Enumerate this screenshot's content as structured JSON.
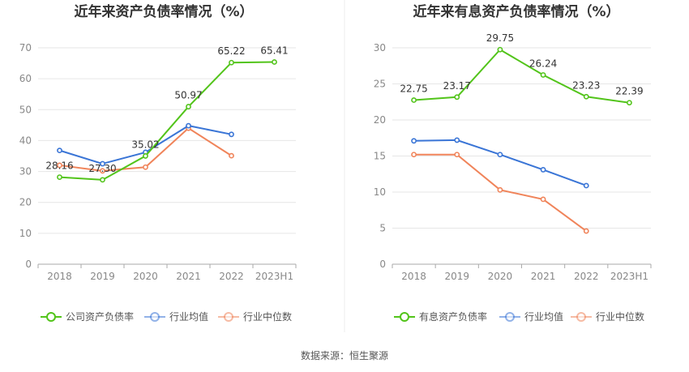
{
  "chart_data": [
    {
      "type": "line",
      "title": "近年来资产负债率情况（%）",
      "categories": [
        "2018",
        "2019",
        "2020",
        "2021",
        "2022",
        "2023H1"
      ],
      "ylim": [
        0,
        70
      ],
      "yticks": [
        0,
        10,
        20,
        30,
        40,
        50,
        60,
        70
      ],
      "grid": true,
      "legend_position": "bottom",
      "series": [
        {
          "name": "公司资产负债率",
          "color": "#52c41a",
          "labeled": true,
          "values": [
            28.16,
            27.3,
            35.02,
            50.97,
            65.22,
            65.41
          ],
          "labels": [
            "28.16",
            "27.30",
            "35.02",
            "50.97",
            "65.22",
            "65.41"
          ]
        },
        {
          "name": "行业均值",
          "color": "#3a75d6",
          "labeled": false,
          "values": [
            36.8,
            32.5,
            36.2,
            44.8,
            42.0,
            null
          ]
        },
        {
          "name": "行业中位数",
          "color": "#f0845a",
          "labeled": false,
          "values": [
            32.0,
            30.2,
            31.4,
            44.0,
            35.1,
            null
          ]
        }
      ]
    },
    {
      "type": "line",
      "title": "近年来有息资产负债率情况（%）",
      "categories": [
        "2018",
        "2019",
        "2020",
        "2021",
        "2022",
        "2023H1"
      ],
      "ylim": [
        0,
        30
      ],
      "yticks": [
        0,
        5,
        10,
        15,
        20,
        25,
        30
      ],
      "grid": true,
      "legend_position": "bottom",
      "series": [
        {
          "name": "有息资产负债率",
          "color": "#52c41a",
          "labeled": true,
          "values": [
            22.75,
            23.17,
            29.75,
            26.24,
            23.23,
            22.39
          ],
          "labels": [
            "22.75",
            "23.17",
            "29.75",
            "26.24",
            "23.23",
            "22.39"
          ]
        },
        {
          "name": "行业均值",
          "color": "#3a75d6",
          "labeled": false,
          "values": [
            17.1,
            17.2,
            15.2,
            13.1,
            10.9,
            null
          ]
        },
        {
          "name": "行业中位数",
          "color": "#f0845a",
          "labeled": false,
          "values": [
            15.2,
            15.2,
            10.3,
            9.0,
            4.6,
            null
          ]
        }
      ]
    }
  ],
  "footer": {
    "source": "数据来源：恒生聚源"
  }
}
